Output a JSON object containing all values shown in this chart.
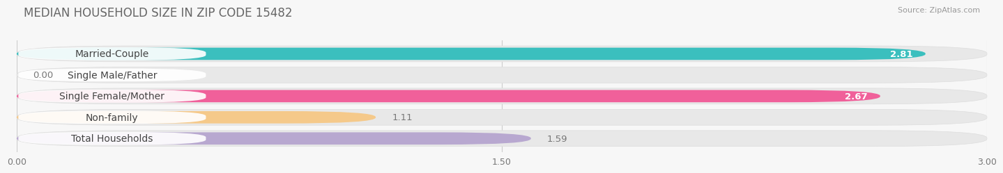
{
  "title": "MEDIAN HOUSEHOLD SIZE IN ZIP CODE 15482",
  "source": "Source: ZipAtlas.com",
  "categories": [
    "Married-Couple",
    "Single Male/Father",
    "Single Female/Mother",
    "Non-family",
    "Total Households"
  ],
  "values": [
    2.81,
    0.0,
    2.67,
    1.11,
    1.59
  ],
  "bar_colors": [
    "#3bbfbe",
    "#a8b8e8",
    "#f0609a",
    "#f5c98a",
    "#b8a8d0"
  ],
  "bar_bg_color": "#e8e8e8",
  "xlim_min": 0.0,
  "xlim_max": 3.0,
  "xtick_labels": [
    "0.00",
    "1.50",
    "3.00"
  ],
  "xtick_values": [
    0.0,
    1.5,
    3.0
  ],
  "background_color": "#f7f7f7",
  "title_color": "#666666",
  "title_fontsize": 12,
  "label_fontsize": 10,
  "value_fontsize": 9.5,
  "value_inside_color": "#ffffff",
  "value_outside_color": "#777777",
  "inside_threshold": 2.5
}
